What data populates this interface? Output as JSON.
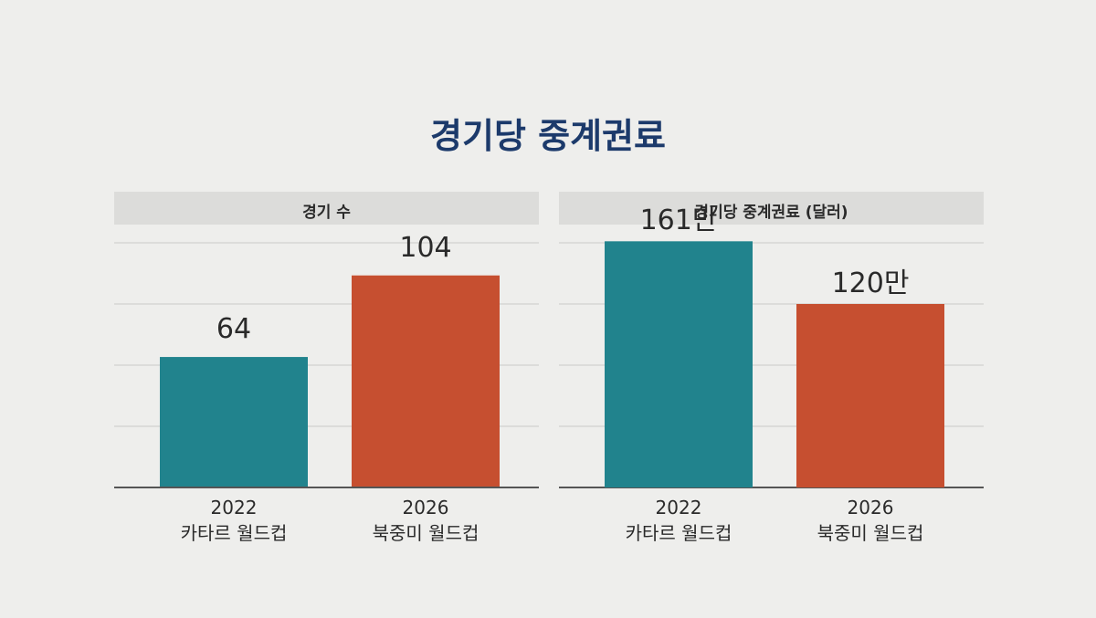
{
  "title": "경기당 중계권료",
  "chart_data": [
    {
      "type": "bar",
      "title": "경기 수",
      "categories": [
        "2022\n카타르 월드컵",
        "2026\n북중미 월드컵"
      ],
      "values": [
        64,
        104
      ],
      "colors": [
        "#21838d",
        "#c64f30"
      ],
      "ylim": [
        0,
        120
      ],
      "yticks": [
        0,
        30,
        60,
        90,
        120
      ],
      "grid": true
    },
    {
      "type": "bar",
      "title": "경기당 중계권료 (달러)",
      "categories": [
        "2022\n카타르 월드컵",
        "2026\n북중미 월드컵"
      ],
      "values": [
        1610000,
        1200000
      ],
      "value_labels": [
        "161만",
        "120만"
      ],
      "colors": [
        "#21838d",
        "#c64f30"
      ],
      "ylim": [
        0,
        1600000
      ],
      "yticks": [
        0,
        400000,
        800000,
        1200000,
        1600000
      ],
      "grid": true
    }
  ]
}
